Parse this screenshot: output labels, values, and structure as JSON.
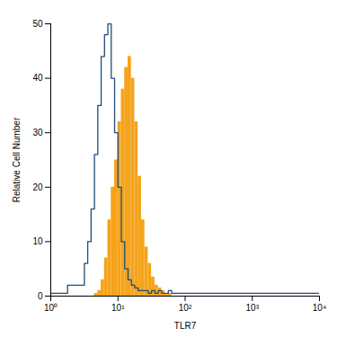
{
  "chart_data": {
    "type": "histogram",
    "x_label": "TLR7",
    "y_label": "Relative Cell Number",
    "log": "x",
    "xlim": [
      1,
      10000
    ],
    "xticks": [
      {
        "value": 1,
        "label": "10⁰"
      },
      {
        "value": 10,
        "label": "10¹"
      },
      {
        "value": 100,
        "label": "10²"
      },
      {
        "value": 1000,
        "label": "10³"
      },
      {
        "value": 10000,
        "label": "10⁴"
      }
    ],
    "ylim": [
      0,
      50
    ],
    "yticks": [
      0,
      10,
      20,
      30,
      40,
      50
    ],
    "bins": [
      1,
      1.778,
      3.162,
      3.548,
      3.981,
      4.467,
      5.012,
      5.623,
      6.31,
      7.079,
      7.943,
      8.913,
      10,
      11.22,
      12.59,
      14.13,
      15.85,
      17.78,
      19.95,
      22.39,
      25.12,
      28.18,
      31.62,
      35.48,
      39.81,
      44.67,
      50.12,
      56.23,
      63.1,
      70.79,
      79.43,
      89.13,
      100,
      316.2,
      1000,
      3162,
      10000
    ],
    "series": [
      {
        "type": "area",
        "color": "#f5a31a",
        "values": [
          0,
          0,
          0,
          0,
          0,
          0.5,
          1,
          3,
          7,
          14,
          20,
          25,
          32,
          38,
          42,
          44,
          40,
          32,
          22,
          14,
          9,
          6,
          3.5,
          2,
          1.5,
          1,
          0.5,
          0.5,
          0,
          0,
          0,
          0,
          0,
          0,
          0,
          0
        ]
      },
      {
        "type": "line",
        "color": "#1f4e79",
        "values": [
          0.5,
          2,
          6,
          10,
          16,
          26,
          35,
          44,
          48,
          50,
          40,
          30,
          20,
          10,
          5,
          3,
          2,
          1.5,
          1,
          1,
          1,
          0.5,
          1,
          0.5,
          1,
          0.5,
          0.5,
          1,
          0.5,
          0.5,
          0.5,
          0.5,
          0.5,
          0.5,
          0.5,
          0.5
        ]
      }
    ]
  }
}
